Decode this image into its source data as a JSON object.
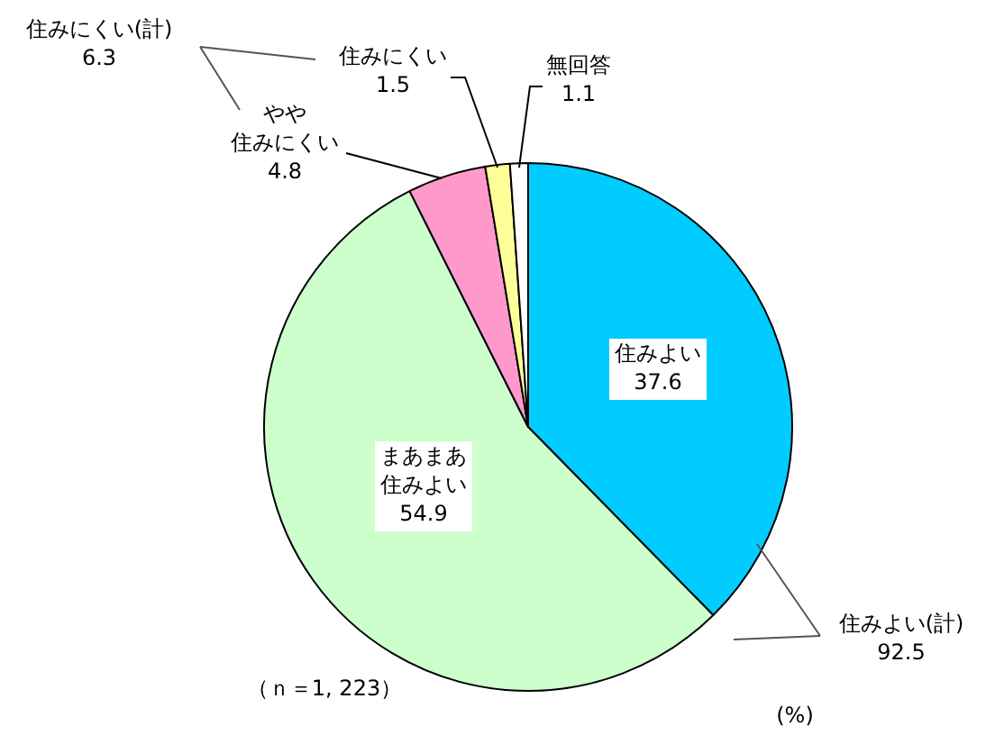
{
  "chart_data": {
    "type": "pie",
    "categories": [
      "住みよい",
      "まあまあ住みよい",
      "やや住みにくい",
      "住みにくい",
      "無回答"
    ],
    "values": [
      37.6,
      54.9,
      4.8,
      1.5,
      1.1
    ],
    "colors": [
      "#00ccff",
      "#ccffcc",
      "#ff99cc",
      "#ffff99",
      "#ffffff"
    ],
    "data_labels": true,
    "legend": false,
    "annotations": [
      "住みにくい(計)\n6.3",
      "住みよい(計)\n92.5",
      "（ｎ＝1, 223）",
      "(%)"
    ]
  }
}
